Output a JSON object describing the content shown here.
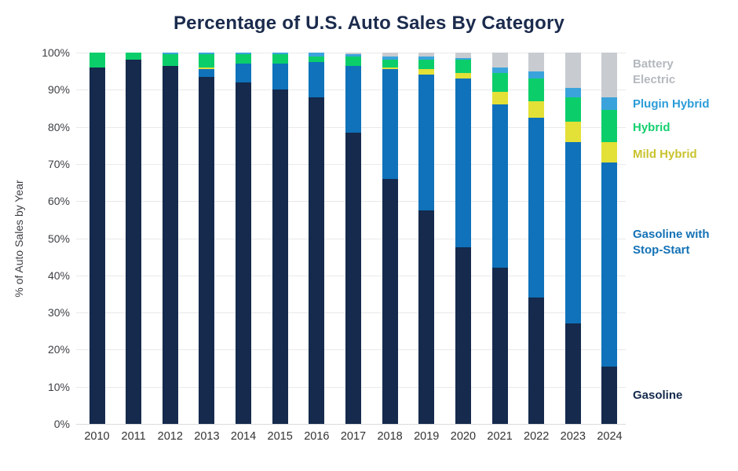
{
  "title": "Percentage of U.S. Auto Sales By Category",
  "y_axis_title": "% of Auto Sales by Year",
  "chart_data": {
    "type": "bar",
    "stacked": true,
    "title": "Percentage of U.S. Auto Sales By Category",
    "xlabel": "",
    "ylabel": "% of Auto Sales by Year",
    "ylim": [
      0,
      100
    ],
    "grid": true,
    "legend_position": "right",
    "categories": [
      "2010",
      "2011",
      "2012",
      "2013",
      "2014",
      "2015",
      "2016",
      "2017",
      "2018",
      "2019",
      "2020",
      "2021",
      "2022",
      "2023",
      "2024"
    ],
    "ytick_labels": [
      "0%",
      "10%",
      "20%",
      "30%",
      "40%",
      "50%",
      "60%",
      "70%",
      "80%",
      "90%",
      "100%"
    ],
    "series": [
      {
        "name": "Gasoline",
        "color": "#152a4d",
        "values": [
          96,
          98,
          96.5,
          93.5,
          92,
          90,
          88,
          78.5,
          66,
          57.5,
          47.5,
          42,
          34,
          27,
          15.5
        ]
      },
      {
        "name": "Gasoline with Stop-Start",
        "color": "#0f72ba",
        "values": [
          0,
          0,
          0,
          2,
          5,
          7,
          9.5,
          18,
          29.5,
          36.5,
          45.5,
          44,
          48.5,
          49,
          55
        ]
      },
      {
        "name": "Mild Hybrid",
        "color": "#e3e037",
        "values": [
          0,
          0,
          0,
          0.5,
          0,
          0,
          0,
          0,
          0.5,
          1.5,
          1.5,
          3.5,
          4.5,
          5.5,
          5.5
        ]
      },
      {
        "name": "Hybrid",
        "color": "#0bce6b",
        "values": [
          4,
          2,
          3,
          3.5,
          2.5,
          2.5,
          1.5,
          2.5,
          2,
          2.5,
          3.5,
          5,
          6,
          6.5,
          8.5
        ]
      },
      {
        "name": "Plugin Hybrid",
        "color": "#3ba3db",
        "values": [
          0,
          0,
          0.5,
          0.5,
          0.5,
          0.5,
          1,
          0.5,
          1,
          1,
          0.5,
          1.5,
          2,
          2.5,
          3.5
        ]
      },
      {
        "name": "Battery Electric",
        "color": "#c8ccd1",
        "values": [
          0,
          0,
          0,
          0,
          0,
          0,
          0,
          0.5,
          1,
          1,
          1.5,
          4,
          5,
          9.5,
          12
        ]
      }
    ]
  },
  "legend": {
    "items": [
      {
        "label": "Battery Electric",
        "color": "#b4b9bf"
      },
      {
        "label": "Plugin Hybrid",
        "color": "#2b9cd8"
      },
      {
        "label": "Hybrid",
        "color": "#14cf6e"
      },
      {
        "label": "Mild Hybrid",
        "color": "#c9c32e"
      },
      {
        "label": "Gasoline with Stop-Start",
        "color": "#1472b6"
      },
      {
        "label": "Gasoline",
        "color": "#152a4d"
      }
    ]
  }
}
